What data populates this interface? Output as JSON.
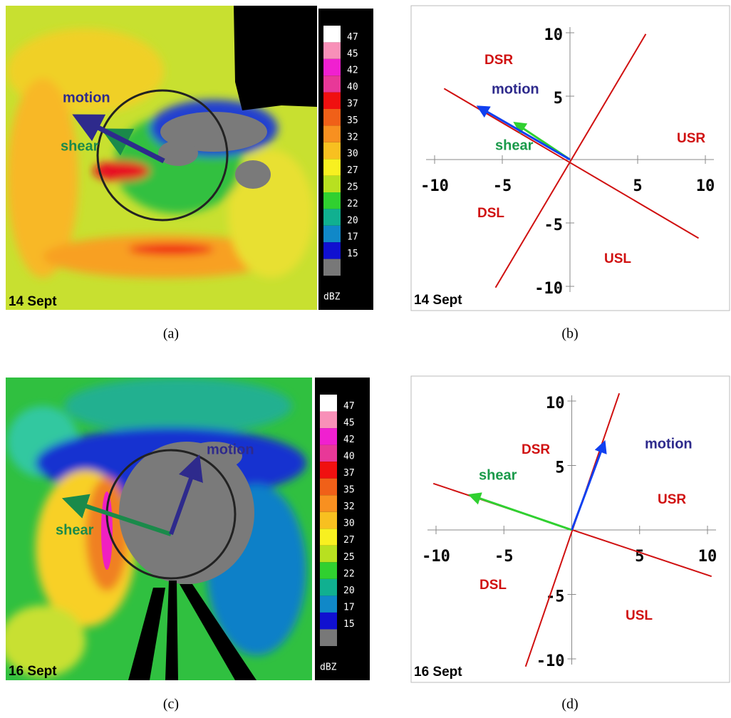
{
  "colorbar": {
    "ticks": [
      47,
      45,
      42,
      40,
      37,
      35,
      32,
      30,
      27,
      25,
      22,
      20,
      17,
      15
    ],
    "unit": "dBZ",
    "colors": [
      "#ffffff",
      "#f890b8",
      "#f020d0",
      "#e83898",
      "#f01010",
      "#f06018",
      "#f89020",
      "#f8c020",
      "#f8f020",
      "#b8e020",
      "#30d030",
      "#10b090",
      "#1088c8",
      "#1010d0",
      "#787878"
    ]
  },
  "radar": [
    {
      "date": "14 Sept",
      "caption": "(a)",
      "motion": "motion",
      "shear": "shear"
    },
    {
      "date": "16 Sept",
      "caption": "(c)",
      "motion": "motion",
      "shear": "shear"
    }
  ],
  "hodo": [
    {
      "date": "14 Sept",
      "caption": "(b)",
      "xlim": [
        -10,
        10
      ],
      "ylim": [
        -10,
        10
      ],
      "xticks": [
        -10,
        -5,
        5,
        10
      ],
      "yticks": [
        10,
        5,
        -5,
        -10
      ],
      "quadrants": [
        "DSR",
        "USR",
        "DSL",
        "USL"
      ],
      "motion": {
        "label": "motion",
        "x": -6.5,
        "y": 4
      },
      "shear": {
        "label": "shear",
        "x": -3.8,
        "y": 2.7
      },
      "lines": [
        {
          "x": [
            -9.3,
            9.5
          ],
          "y": [
            5.6,
            -6.2
          ]
        },
        {
          "x": [
            -5.5,
            5.6
          ],
          "y": [
            -10.1,
            9.9
          ]
        }
      ]
    },
    {
      "date": "16 Sept",
      "caption": "(d)",
      "xlim": [
        -10,
        10
      ],
      "ylim": [
        -10,
        10
      ],
      "xticks": [
        -10,
        -5,
        5,
        10
      ],
      "yticks": [
        10,
        5,
        -5,
        -10
      ],
      "quadrants": [
        "DSR",
        "USR",
        "DSL",
        "USL"
      ],
      "motion": {
        "label": "motion",
        "x": 2.3,
        "y": 6.5
      },
      "shear": {
        "label": "shear",
        "x": -7.2,
        "y": 2.6
      },
      "lines": [
        {
          "x": [
            -10.2,
            10.3
          ],
          "y": [
            3.6,
            -3.6
          ]
        },
        {
          "x": [
            -3.4,
            3.5
          ],
          "y": [
            -10.6,
            10.6
          ]
        }
      ]
    }
  ]
}
